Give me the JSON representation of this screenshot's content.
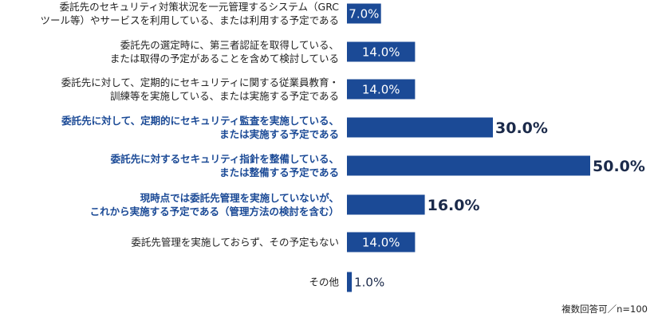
{
  "chart_data": {
    "type": "bar",
    "orientation": "horizontal",
    "bar_color": "#1b4a96",
    "highlight_color": "#1b4a96",
    "xlim": [
      0,
      50
    ],
    "grid": false,
    "categories": [
      [
        "委託先のセキュリティ対策状況を一元管理するシステム（GRC",
        "ツール等）やサービスを利用している、または利用する予定である"
      ],
      [
        "委託先の選定時に、第三者認証を取得している、",
        "または取得の予定があることを含めて検討している"
      ],
      [
        "委託先に対して、定期的にセキュリティに関する従業員教育・",
        "訓練等を実施している、または実施する予定である"
      ],
      [
        "委託先に対して、定期的にセキュリティ監査を実施している、",
        "または実施する予定である"
      ],
      [
        "委託先に対するセキュリティ指針を整備している、",
        "または整備する予定である"
      ],
      [
        "現時点では委託先管理を実施していないが、",
        "これから実施する予定である（管理方法の検討を含む）"
      ],
      [
        "委託先管理を実施しておらず、その予定もない"
      ],
      [
        "その他"
      ]
    ],
    "values": [
      7.0,
      14.0,
      14.0,
      30.0,
      50.0,
      16.0,
      14.0,
      1.0
    ],
    "labels": [
      "7.0%",
      "14.0%",
      "14.0%",
      "30.0%",
      "50.0%",
      "16.0%",
      "14.0%",
      "1.0%"
    ],
    "highlighted": [
      false,
      false,
      false,
      true,
      true,
      true,
      false,
      false
    ],
    "note": "複数回答可／n=100"
  }
}
